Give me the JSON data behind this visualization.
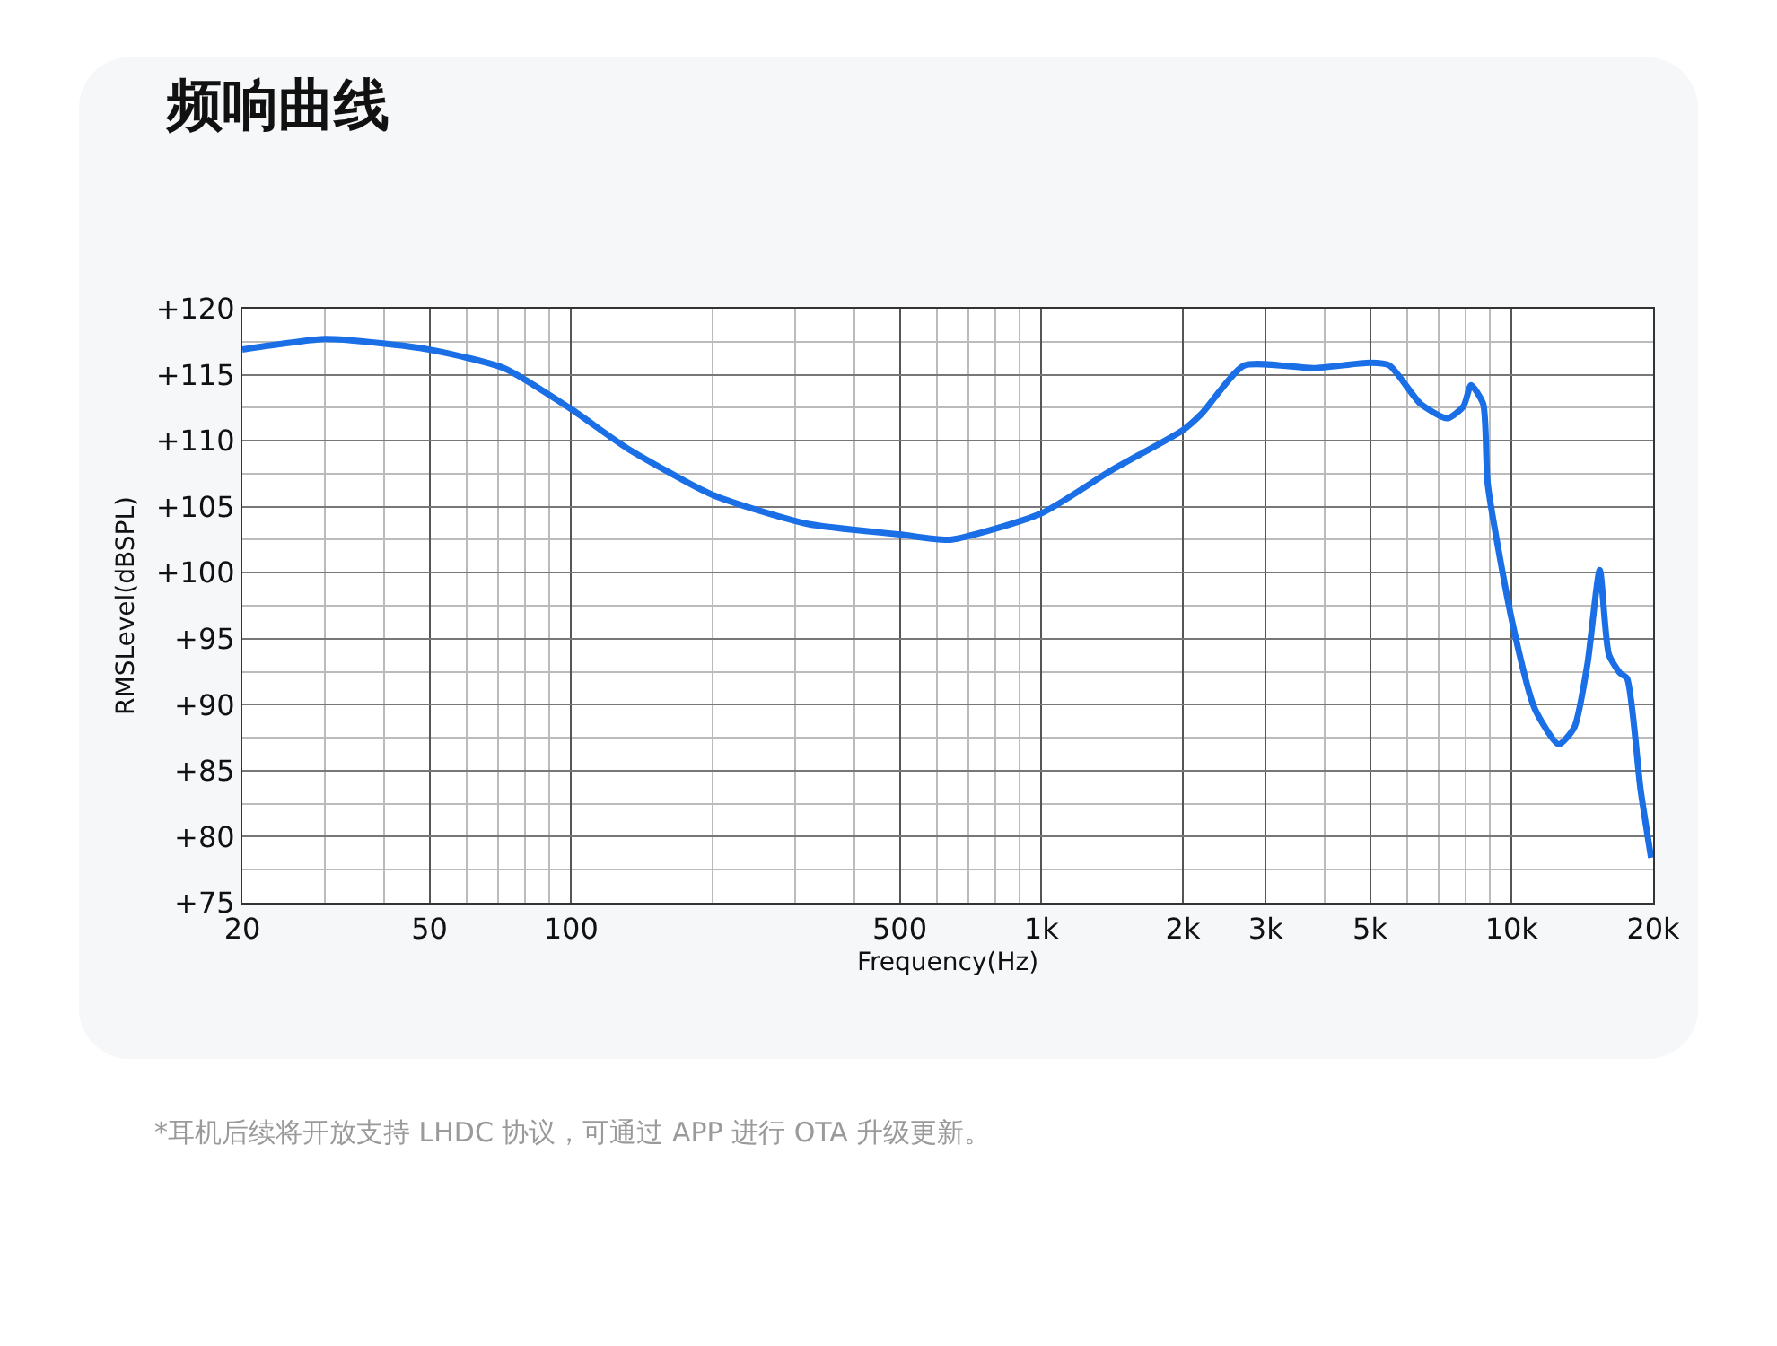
{
  "chart_data": {
    "type": "line",
    "title": "频响曲线",
    "xlabel": "Frequency(Hz)",
    "ylabel": "RMSLevel(dBSPL)",
    "log": "x",
    "grid": true,
    "marker": "none",
    "line_style": "solid",
    "xlim": [
      20,
      20000
    ],
    "xticks": [
      20,
      50,
      100,
      500,
      {
        "value": 1000,
        "label": "1k"
      },
      {
        "value": 2000,
        "label": "2k"
      },
      {
        "value": 3000,
        "label": "3k"
      },
      {
        "value": 5000,
        "label": "5k"
      },
      {
        "value": 10000,
        "label": "10k"
      },
      {
        "value": 20000,
        "label": "20k"
      }
    ],
    "ylim": [
      75,
      120
    ],
    "yticks": [
      {
        "value": 75,
        "label": "+75"
      },
      {
        "value": 80,
        "label": "+80"
      },
      {
        "value": 85,
        "label": "+85"
      },
      {
        "value": 90,
        "label": "+90"
      },
      {
        "value": 95,
        "label": "+95"
      },
      {
        "value": 100,
        "label": "+100"
      },
      {
        "value": 105,
        "label": "+105"
      },
      {
        "value": 110,
        "label": "+110"
      },
      {
        "value": 115,
        "label": "+115"
      },
      {
        "value": 120,
        "label": "+120"
      }
    ],
    "series": [
      {
        "color": "#1a6fe6",
        "x": [
          20,
          30,
          39,
          50,
          72,
          100,
          132,
          200,
          318,
          500,
          640,
          1000,
          1415,
          2000,
          2200,
          2700,
          3800,
          5000,
          5500,
          6400,
          7300,
          7900,
          8200,
          8700,
          8900,
          10000,
          11200,
          12600,
          13600,
          14500,
          15400,
          16100,
          17000,
          17600,
          18800,
          19800
        ],
        "values": [
          116.9,
          117.7,
          117.4,
          116.9,
          115.5,
          112.4,
          109.4,
          105.9,
          103.7,
          102.9,
          102.5,
          104.5,
          107.8,
          110.8,
          112.1,
          115.7,
          115.5,
          115.9,
          115.7,
          112.8,
          111.7,
          112.6,
          114.2,
          112.8,
          106.7,
          96.5,
          89.7,
          87.0,
          88.3,
          93.1,
          100.2,
          93.8,
          92.4,
          92.0,
          83.6,
          78.4
        ]
      }
    ],
    "annotations": [
      "*耳机后续将开放支持 LHDC 协议，可通过 APP 进行 OTA 升级更新。"
    ]
  }
}
